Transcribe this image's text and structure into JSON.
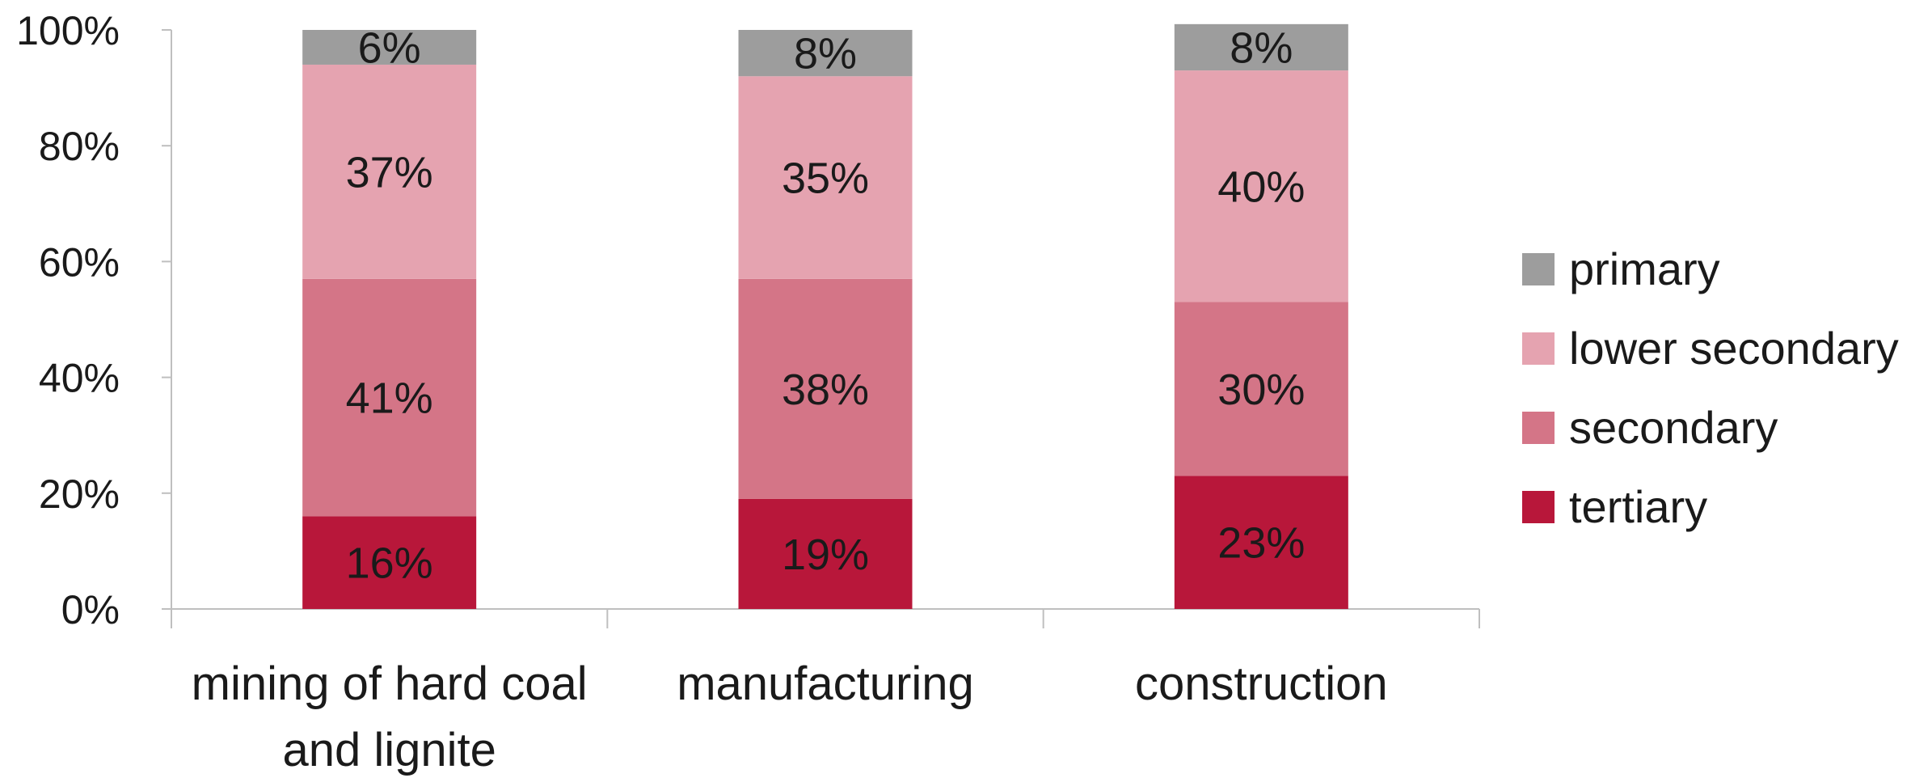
{
  "chart_data": {
    "type": "bar",
    "stacked": true,
    "categories": [
      "mining of hard coal and lignite",
      "manufacturing",
      "construction"
    ],
    "category_lines": [
      [
        "mining of hard coal",
        "and lignite"
      ],
      [
        "manufacturing"
      ],
      [
        "construction"
      ]
    ],
    "series": [
      {
        "name": "tertiary",
        "color": "#b8173a",
        "values": [
          16,
          19,
          23
        ],
        "labels": [
          "16%",
          "19%",
          "23%"
        ]
      },
      {
        "name": "secondary",
        "color": "#d47587",
        "values": [
          41,
          38,
          30
        ],
        "labels": [
          "41%",
          "38%",
          "30%"
        ]
      },
      {
        "name": "lower secondary",
        "color": "#e5a3b0",
        "values": [
          37,
          35,
          40
        ],
        "labels": [
          "37%",
          "35%",
          "40%"
        ]
      },
      {
        "name": "primary",
        "color": "#9d9d9d",
        "values": [
          6,
          8,
          8
        ],
        "labels": [
          "6%",
          "8%",
          "8%"
        ]
      }
    ],
    "legend_order": [
      "primary",
      "lower secondary",
      "secondary",
      "tertiary"
    ],
    "ylim": [
      0,
      100
    ],
    "yticks": [
      0,
      20,
      40,
      60,
      80,
      100
    ],
    "ytick_labels": [
      "0%",
      "20%",
      "40%",
      "60%",
      "80%",
      "100%"
    ],
    "xlabel": "",
    "ylabel": "",
    "title": "",
    "legend_position": "right",
    "grid": false,
    "axis_color": "#bfbfbf"
  }
}
